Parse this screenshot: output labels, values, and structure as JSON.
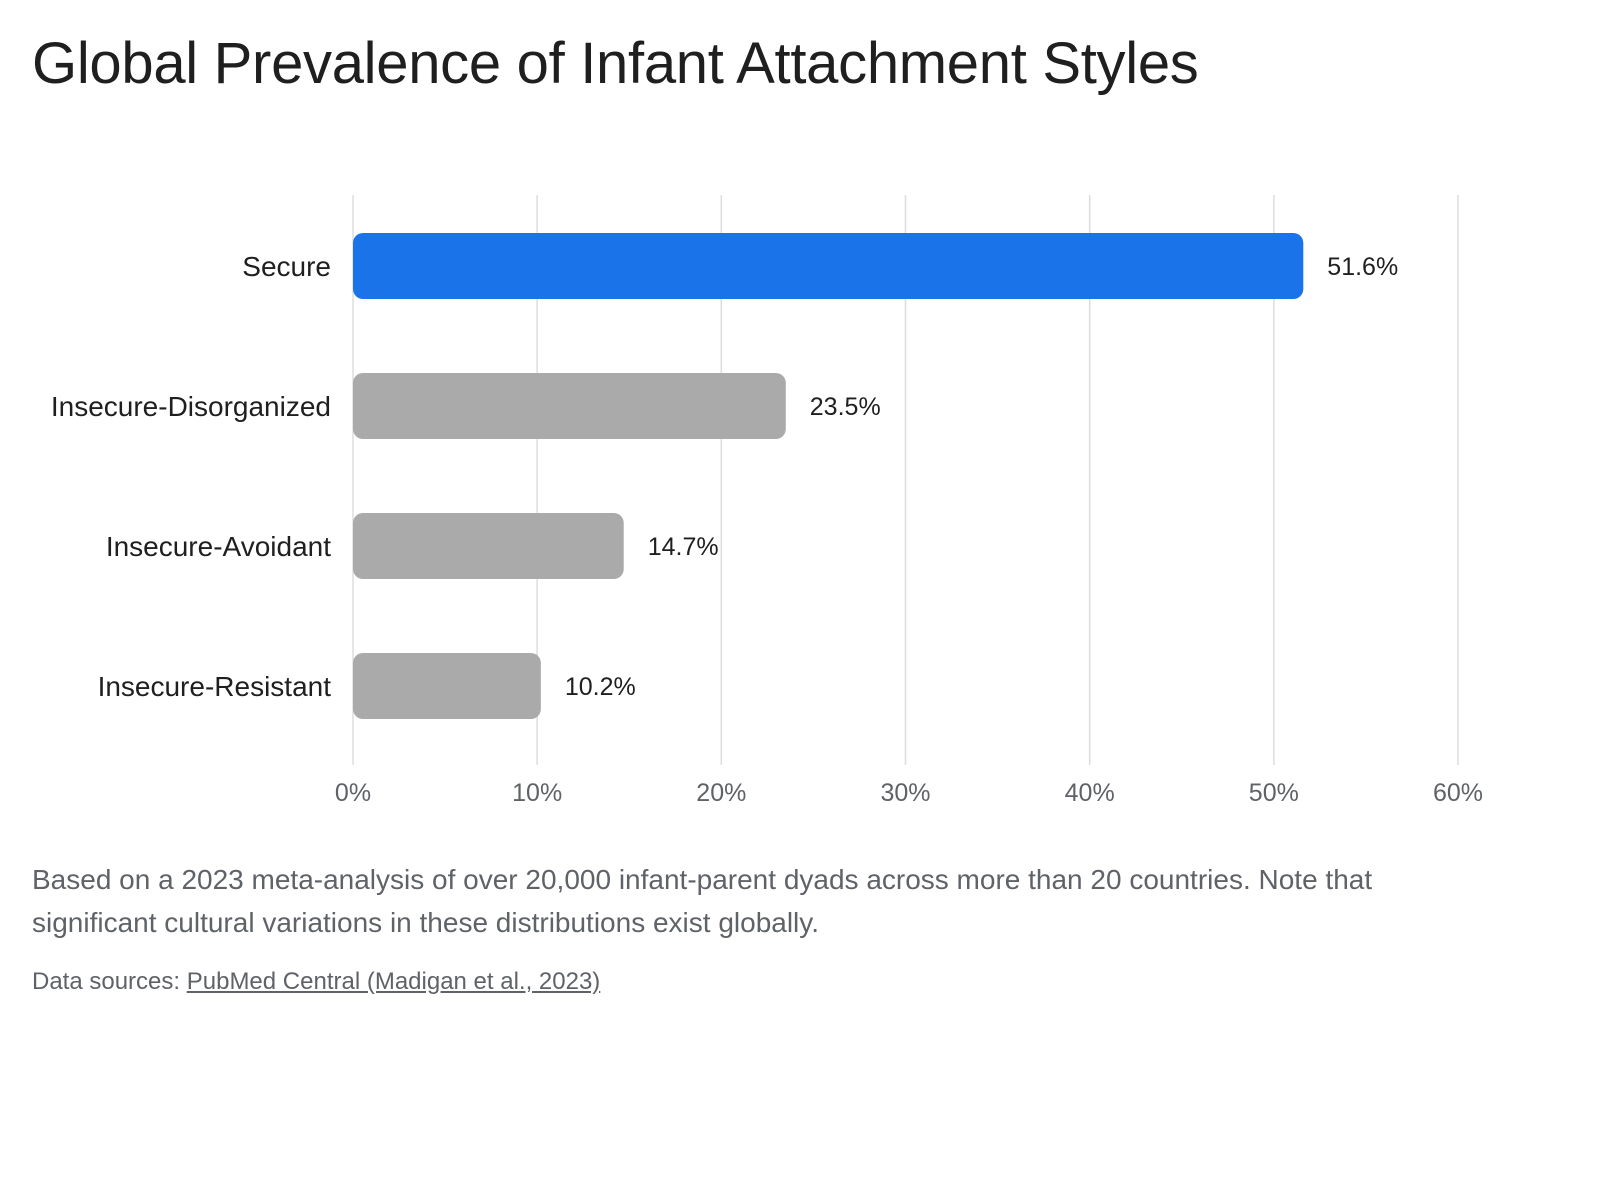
{
  "chart_data": {
    "type": "bar",
    "orientation": "horizontal",
    "title": "Global Prevalence of Infant Attachment Styles",
    "categories": [
      "Secure",
      "Insecure-Disorganized",
      "Insecure-Avoidant",
      "Insecure-Resistant"
    ],
    "values": [
      51.6,
      23.5,
      14.7,
      10.2
    ],
    "value_labels": [
      "51.6%",
      "23.5%",
      "14.7%",
      "10.2%"
    ],
    "xlim": [
      0,
      60
    ],
    "x_ticks": [
      0,
      10,
      20,
      30,
      40,
      50,
      60
    ],
    "x_tick_labels": [
      "0%",
      "10%",
      "20%",
      "30%",
      "40%",
      "50%",
      "60%"
    ],
    "grid": "vertical",
    "legend": "none",
    "colors": {
      "highlight": "#1a73e8",
      "default": "#aaaaaa"
    },
    "highlight_category": "Secure"
  },
  "note": "Based on a 2023 meta-analysis of over 20,000 infant-parent dyads across more than 20 countries. Note that significant cultural variations in these distributions exist globally.",
  "sources": {
    "prefix": "Data sources: ",
    "link_text": "PubMed Central (Madigan et al., 2023)"
  }
}
